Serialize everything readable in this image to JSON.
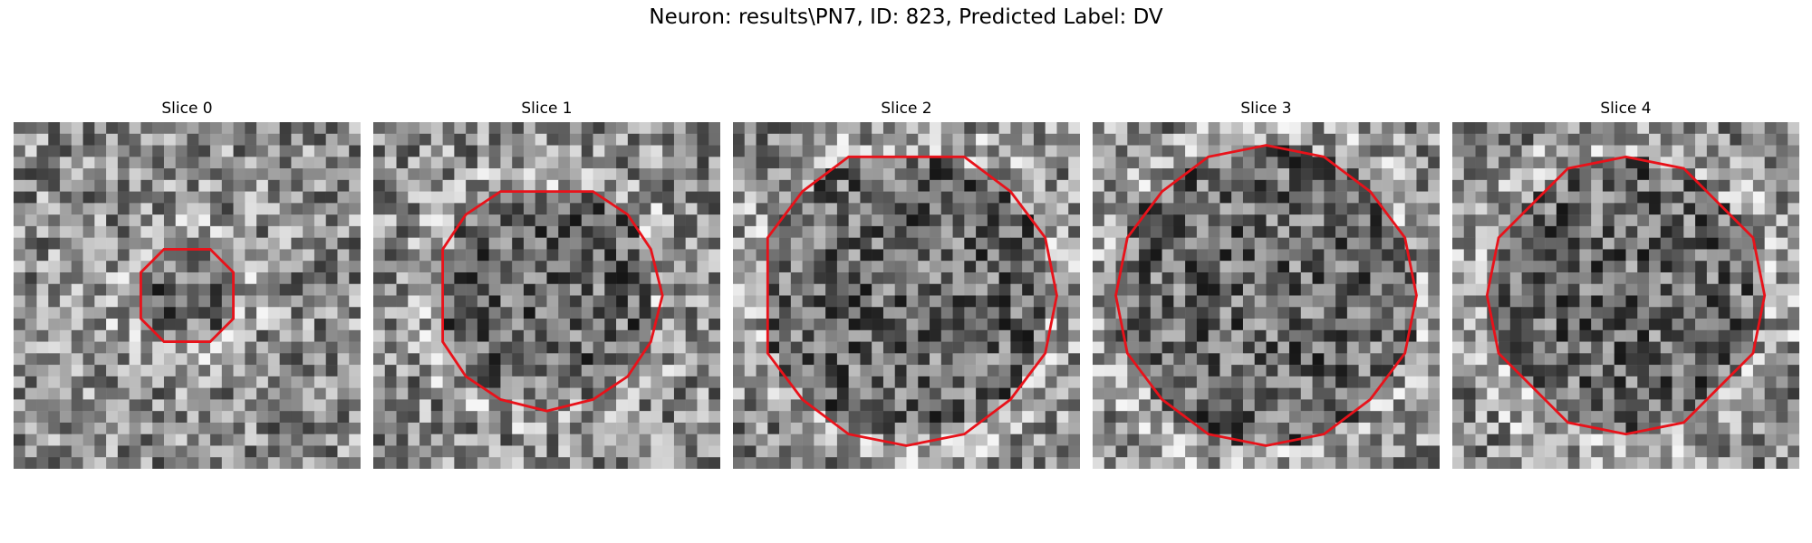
{
  "figure": {
    "title": "Neuron: results\\PN7, ID: 823, Predicted Label: DV"
  },
  "panels": [
    {
      "title": "Slice 0",
      "contour_radius_px": 4.0,
      "seed": 11
    },
    {
      "title": "Slice 1",
      "contour_radius_px": 9.5,
      "seed": 23
    },
    {
      "title": "Slice 2",
      "contour_radius_px": 12.5,
      "seed": 37
    },
    {
      "title": "Slice 3",
      "contour_radius_px": 13.0,
      "seed": 41
    },
    {
      "title": "Slice 4",
      "contour_radius_px": 12.0,
      "seed": 53
    }
  ],
  "colors": {
    "contour": "#e8121a",
    "background": "#ffffff"
  }
}
